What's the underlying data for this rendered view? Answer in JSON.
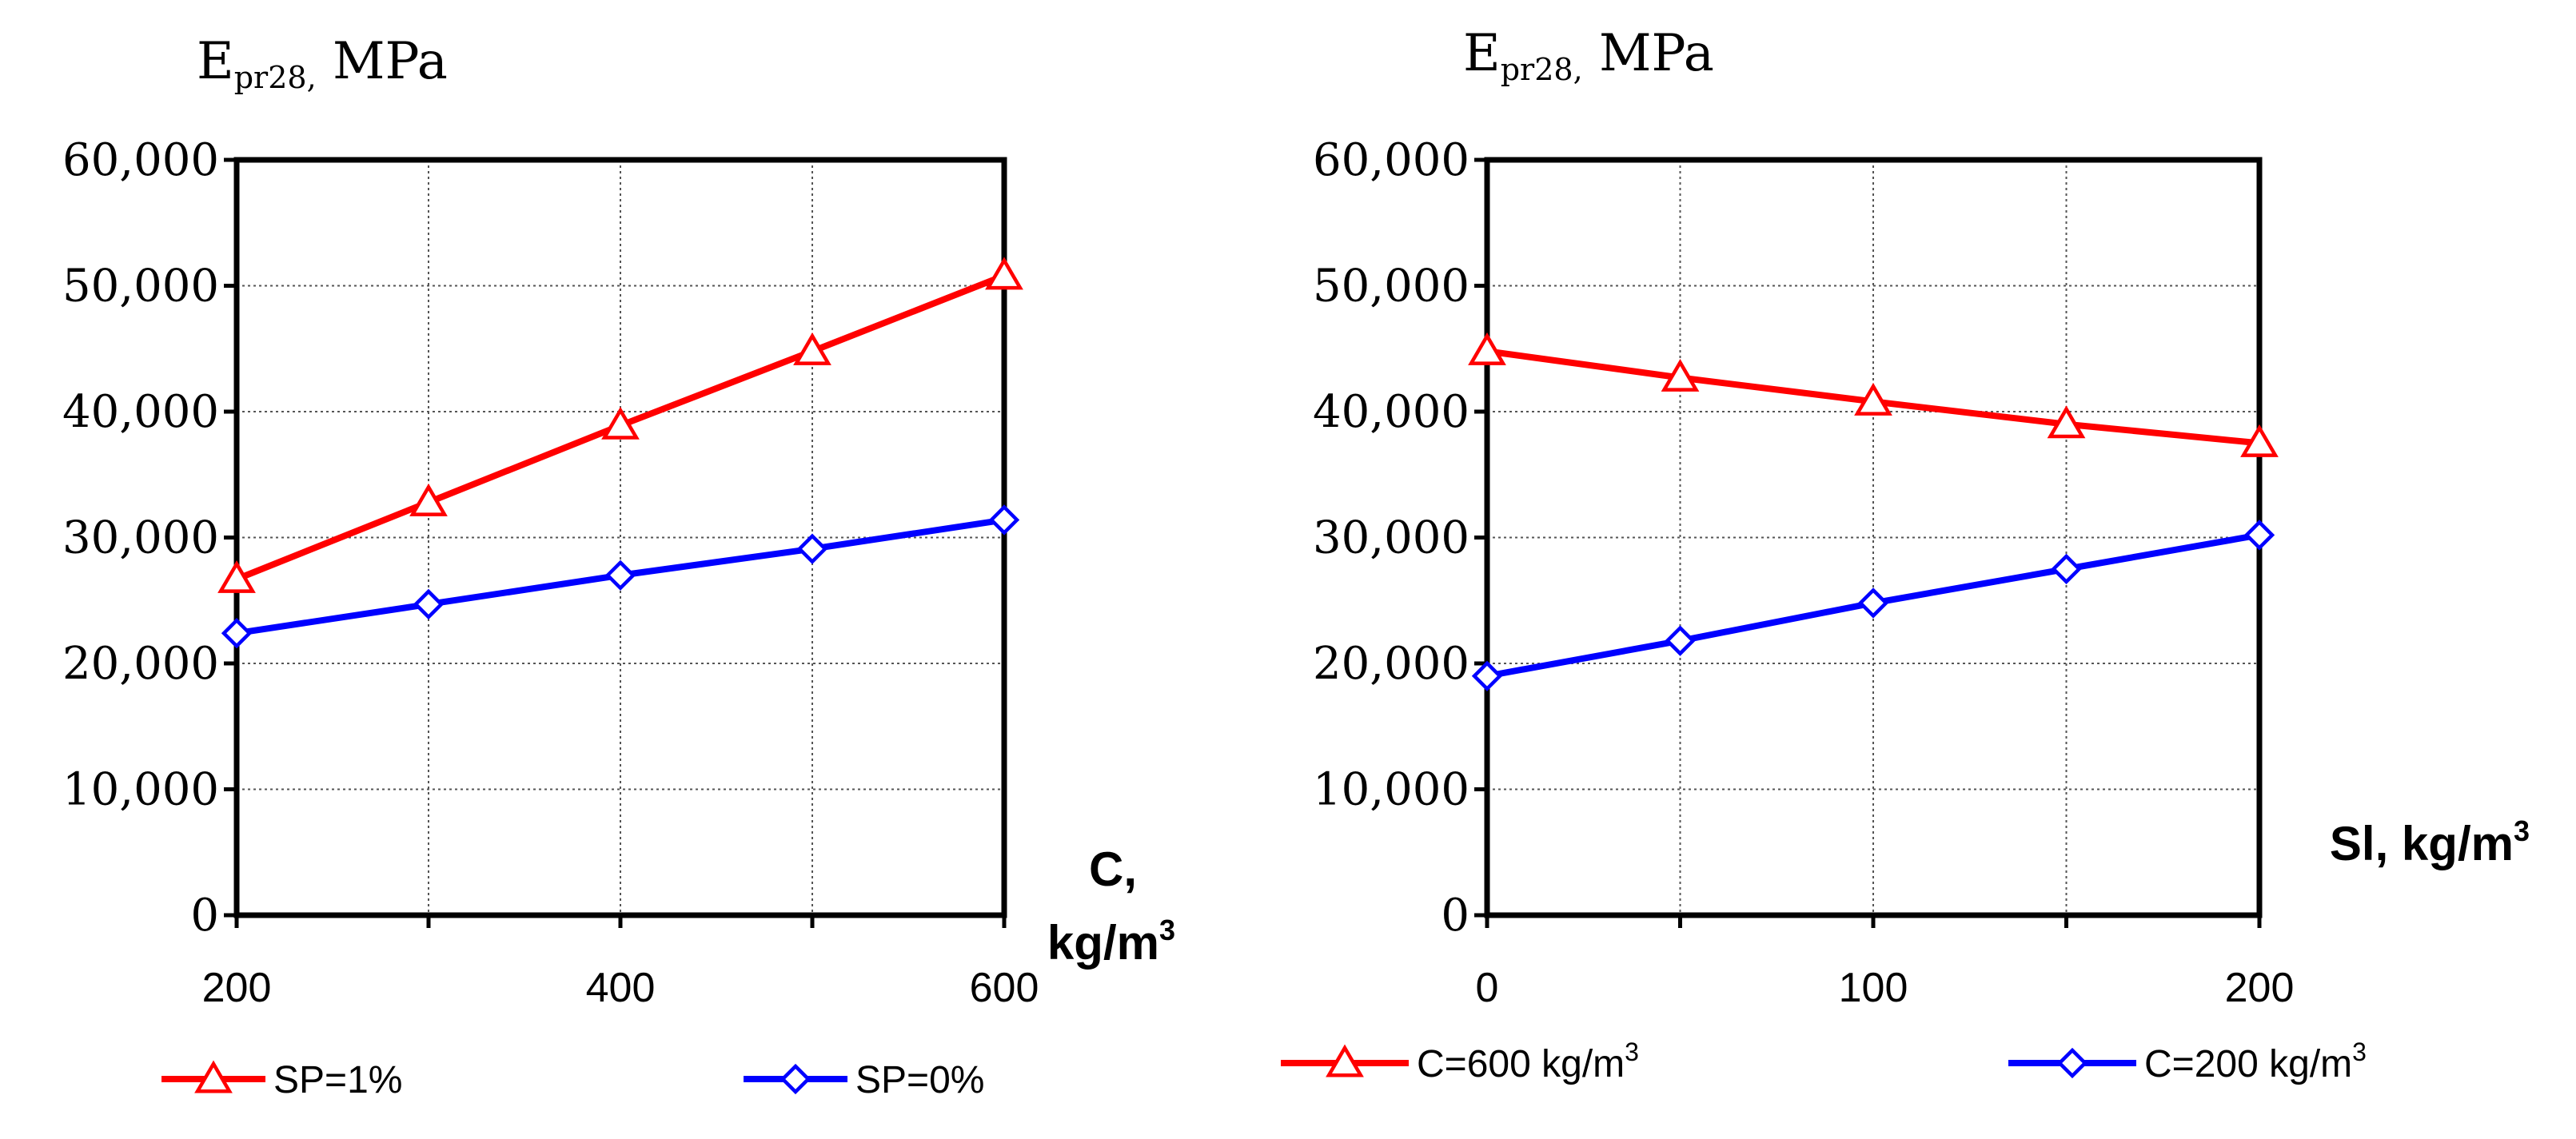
{
  "chart_data": [
    {
      "type": "line",
      "ylabel_main": "E",
      "ylabel_sub": "pr28,",
      "ylabel_unit": "MPa",
      "xlabel_line1": "C,",
      "xlabel_line2": "kg/m",
      "xlabel_sup": "3",
      "xlim": [
        200,
        600
      ],
      "ylim": [
        0,
        60000
      ],
      "grid": true,
      "x": [
        200,
        300,
        400,
        500,
        600
      ],
      "x_gridlines": [
        300,
        400,
        500
      ],
      "xticks": [
        200,
        400,
        600
      ],
      "xtick_labels": [
        "200",
        "400",
        "600"
      ],
      "yticks": [
        0,
        10000,
        20000,
        30000,
        40000,
        50000,
        60000
      ],
      "ytick_labels": [
        "0",
        "10,000",
        "20,000",
        "30,000",
        "40,000",
        "50,000",
        "60,000"
      ],
      "legend_position": "bottom",
      "series": [
        {
          "name": "SP=1%",
          "label_base": "SP=1%",
          "label_sup": "",
          "marker": "triangle",
          "color": "#ff0000",
          "values": [
            26700,
            32800,
            38900,
            44800,
            50800
          ]
        },
        {
          "name": "SP=0%",
          "label_base": "SP=0%",
          "label_sup": "",
          "marker": "diamond",
          "color": "#0000ff",
          "values": [
            22400,
            24700,
            27000,
            29100,
            31400
          ]
        }
      ]
    },
    {
      "type": "line",
      "ylabel_main": "E",
      "ylabel_sub": "pr28,",
      "ylabel_unit": "MPa",
      "xlabel_line1": "Sl, kg/m",
      "xlabel_line2": "",
      "xlabel_sup": "3",
      "xlim": [
        0,
        200
      ],
      "ylim": [
        0,
        60000
      ],
      "grid": true,
      "x": [
        0,
        50,
        100,
        150,
        200
      ],
      "x_gridlines": [
        50,
        100,
        150
      ],
      "xticks": [
        0,
        100,
        200
      ],
      "xtick_labels": [
        "0",
        "100",
        "200"
      ],
      "yticks": [
        0,
        10000,
        20000,
        30000,
        40000,
        50000,
        60000
      ],
      "ytick_labels": [
        "0",
        "10,000",
        "20,000",
        "30,000",
        "40,000",
        "50,000",
        "60,000"
      ],
      "legend_position": "bottom",
      "series": [
        {
          "name": "C=600 kg/m3",
          "label_base": "C=600 kg/m",
          "label_sup": "3",
          "marker": "triangle",
          "color": "#ff0000",
          "values": [
            44800,
            42700,
            40800,
            39000,
            37500
          ]
        },
        {
          "name": "C=200 kg/m3",
          "label_base": "C=200 kg/m",
          "label_sup": "3",
          "marker": "diamond",
          "color": "#0000ff",
          "values": [
            19000,
            21800,
            24800,
            27500,
            30200
          ]
        }
      ]
    }
  ]
}
